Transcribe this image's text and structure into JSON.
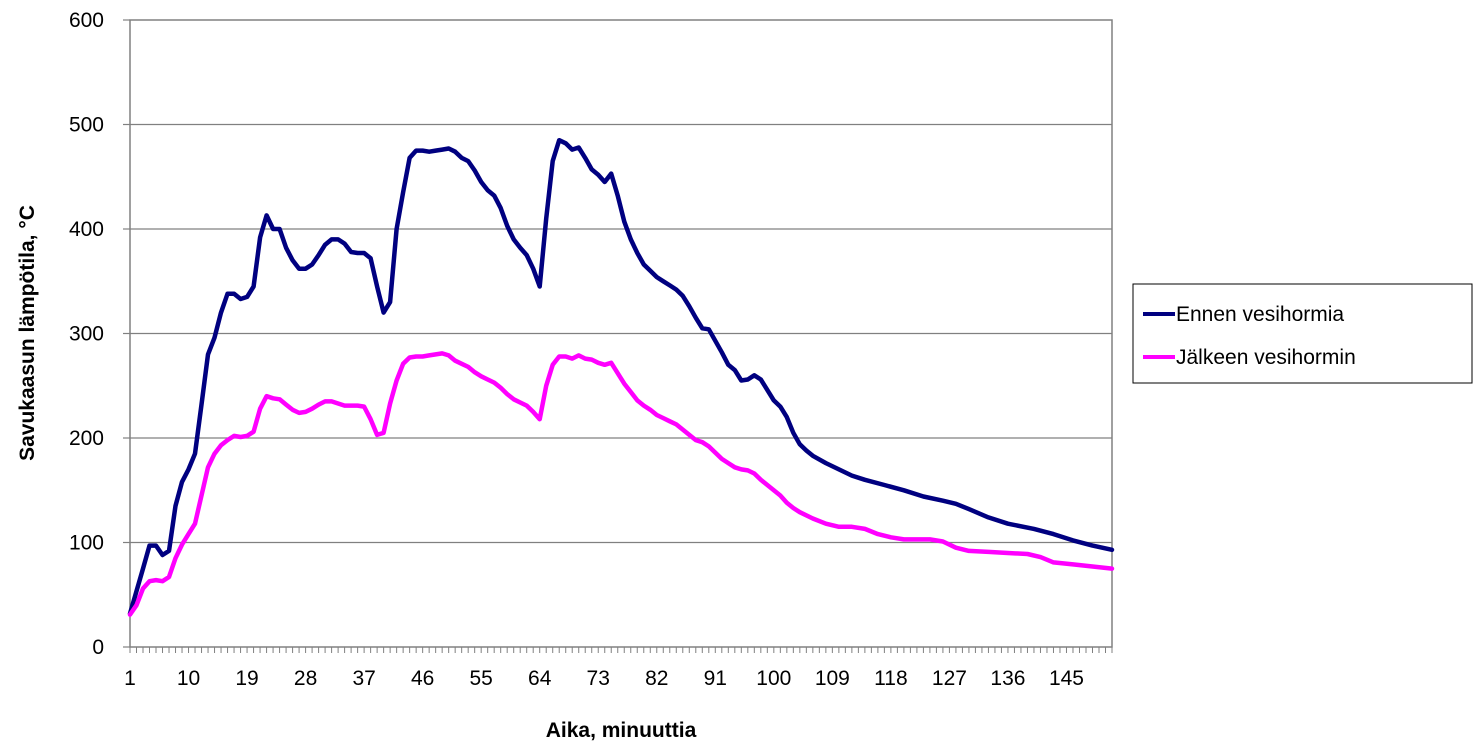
{
  "chart_data": {
    "type": "line",
    "title": "",
    "xlabel": "Aika, minuuttia",
    "ylabel": "Savukaasun lämpötila, °C",
    "xlim": [
      1,
      152
    ],
    "ylim": [
      0,
      600
    ],
    "grid": "horizontal",
    "legend_position": "right",
    "x_tick_labels": [
      "1",
      "10",
      "19",
      "28",
      "37",
      "46",
      "55",
      "64",
      "73",
      "82",
      "91",
      "100",
      "109",
      "118",
      "127",
      "136",
      "145"
    ],
    "y_tick_labels": [
      "0",
      "100",
      "200",
      "300",
      "400",
      "500",
      "600"
    ],
    "series": [
      {
        "name": "Ennen vesihormia",
        "color": "#000080",
        "points": [
          [
            1,
            32
          ],
          [
            3,
            75
          ],
          [
            4,
            97
          ],
          [
            5,
            97
          ],
          [
            6,
            88
          ],
          [
            7,
            92
          ],
          [
            8,
            135
          ],
          [
            9,
            158
          ],
          [
            10,
            170
          ],
          [
            11,
            185
          ],
          [
            12,
            232
          ],
          [
            13,
            280
          ],
          [
            14,
            296
          ],
          [
            15,
            320
          ],
          [
            16,
            338
          ],
          [
            17,
            338
          ],
          [
            18,
            333
          ],
          [
            19,
            335
          ],
          [
            20,
            345
          ],
          [
            21,
            392
          ],
          [
            22,
            413
          ],
          [
            23,
            400
          ],
          [
            24,
            400
          ],
          [
            25,
            382
          ],
          [
            26,
            370
          ],
          [
            27,
            362
          ],
          [
            28,
            362
          ],
          [
            29,
            366
          ],
          [
            30,
            375
          ],
          [
            31,
            385
          ],
          [
            32,
            390
          ],
          [
            33,
            390
          ],
          [
            34,
            386
          ],
          [
            35,
            378
          ],
          [
            36,
            377
          ],
          [
            37,
            377
          ],
          [
            38,
            372
          ],
          [
            39,
            345
          ],
          [
            40,
            320
          ],
          [
            41,
            330
          ],
          [
            42,
            400
          ],
          [
            43,
            435
          ],
          [
            44,
            468
          ],
          [
            45,
            475
          ],
          [
            46,
            475
          ],
          [
            47,
            474
          ],
          [
            48,
            475
          ],
          [
            49,
            476
          ],
          [
            50,
            477
          ],
          [
            51,
            474
          ],
          [
            52,
            468
          ],
          [
            53,
            465
          ],
          [
            54,
            456
          ],
          [
            55,
            445
          ],
          [
            56,
            437
          ],
          [
            57,
            432
          ],
          [
            58,
            420
          ],
          [
            59,
            403
          ],
          [
            60,
            390
          ],
          [
            61,
            382
          ],
          [
            62,
            375
          ],
          [
            63,
            362
          ],
          [
            64,
            345
          ],
          [
            65,
            410
          ],
          [
            66,
            465
          ],
          [
            67,
            485
          ],
          [
            68,
            482
          ],
          [
            69,
            476
          ],
          [
            70,
            478
          ],
          [
            71,
            468
          ],
          [
            72,
            457
          ],
          [
            73,
            452
          ],
          [
            74,
            445
          ],
          [
            75,
            453
          ],
          [
            76,
            432
          ],
          [
            77,
            407
          ],
          [
            78,
            390
          ],
          [
            79,
            377
          ],
          [
            80,
            366
          ],
          [
            81,
            360
          ],
          [
            82,
            354
          ],
          [
            83,
            350
          ],
          [
            84,
            346
          ],
          [
            85,
            342
          ],
          [
            86,
            336
          ],
          [
            87,
            326
          ],
          [
            88,
            315
          ],
          [
            89,
            305
          ],
          [
            90,
            304
          ],
          [
            91,
            293
          ],
          [
            92,
            282
          ],
          [
            93,
            270
          ],
          [
            94,
            265
          ],
          [
            95,
            255
          ],
          [
            96,
            256
          ],
          [
            97,
            260
          ],
          [
            98,
            256
          ],
          [
            99,
            246
          ],
          [
            100,
            236
          ],
          [
            101,
            230
          ],
          [
            102,
            220
          ],
          [
            103,
            205
          ],
          [
            104,
            194
          ],
          [
            105,
            188
          ],
          [
            106,
            183
          ],
          [
            108,
            176
          ],
          [
            110,
            170
          ],
          [
            112,
            164
          ],
          [
            114,
            160
          ],
          [
            117,
            155
          ],
          [
            120,
            150
          ],
          [
            123,
            144
          ],
          [
            126,
            140
          ],
          [
            128,
            137
          ],
          [
            130,
            132
          ],
          [
            133,
            124
          ],
          [
            136,
            118
          ],
          [
            140,
            113
          ],
          [
            143,
            108
          ],
          [
            146,
            102
          ],
          [
            149,
            97
          ],
          [
            152,
            93
          ]
        ]
      },
      {
        "name": "Jälkeen vesihormin",
        "color": "#FF00FF",
        "points": [
          [
            1,
            31
          ],
          [
            2,
            40
          ],
          [
            3,
            56
          ],
          [
            4,
            63
          ],
          [
            5,
            64
          ],
          [
            6,
            63
          ],
          [
            7,
            67
          ],
          [
            8,
            85
          ],
          [
            9,
            98
          ],
          [
            10,
            108
          ],
          [
            11,
            118
          ],
          [
            12,
            145
          ],
          [
            13,
            172
          ],
          [
            14,
            185
          ],
          [
            15,
            193
          ],
          [
            16,
            198
          ],
          [
            17,
            202
          ],
          [
            18,
            201
          ],
          [
            19,
            202
          ],
          [
            20,
            206
          ],
          [
            21,
            228
          ],
          [
            22,
            240
          ],
          [
            23,
            238
          ],
          [
            24,
            237
          ],
          [
            25,
            232
          ],
          [
            26,
            227
          ],
          [
            27,
            224
          ],
          [
            28,
            225
          ],
          [
            29,
            228
          ],
          [
            30,
            232
          ],
          [
            31,
            235
          ],
          [
            32,
            235
          ],
          [
            33,
            233
          ],
          [
            34,
            231
          ],
          [
            35,
            231
          ],
          [
            36,
            231
          ],
          [
            37,
            230
          ],
          [
            38,
            218
          ],
          [
            39,
            203
          ],
          [
            40,
            205
          ],
          [
            41,
            233
          ],
          [
            42,
            255
          ],
          [
            43,
            271
          ],
          [
            44,
            277
          ],
          [
            45,
            278
          ],
          [
            46,
            278
          ],
          [
            47,
            279
          ],
          [
            48,
            280
          ],
          [
            49,
            281
          ],
          [
            50,
            279
          ],
          [
            51,
            274
          ],
          [
            52,
            271
          ],
          [
            53,
            268
          ],
          [
            54,
            263
          ],
          [
            55,
            259
          ],
          [
            56,
            256
          ],
          [
            57,
            253
          ],
          [
            58,
            248
          ],
          [
            59,
            242
          ],
          [
            60,
            237
          ],
          [
            61,
            234
          ],
          [
            62,
            231
          ],
          [
            63,
            225
          ],
          [
            64,
            218
          ],
          [
            65,
            250
          ],
          [
            66,
            270
          ],
          [
            67,
            278
          ],
          [
            68,
            278
          ],
          [
            69,
            276
          ],
          [
            70,
            279
          ],
          [
            71,
            276
          ],
          [
            72,
            275
          ],
          [
            73,
            272
          ],
          [
            74,
            270
          ],
          [
            75,
            272
          ],
          [
            76,
            262
          ],
          [
            77,
            252
          ],
          [
            78,
            244
          ],
          [
            79,
            236
          ],
          [
            80,
            231
          ],
          [
            81,
            227
          ],
          [
            82,
            222
          ],
          [
            83,
            219
          ],
          [
            84,
            216
          ],
          [
            85,
            213
          ],
          [
            86,
            208
          ],
          [
            87,
            203
          ],
          [
            88,
            198
          ],
          [
            89,
            196
          ],
          [
            90,
            192
          ],
          [
            91,
            186
          ],
          [
            92,
            180
          ],
          [
            93,
            176
          ],
          [
            94,
            172
          ],
          [
            95,
            170
          ],
          [
            96,
            169
          ],
          [
            97,
            166
          ],
          [
            98,
            160
          ],
          [
            99,
            155
          ],
          [
            100,
            150
          ],
          [
            101,
            145
          ],
          [
            102,
            138
          ],
          [
            103,
            133
          ],
          [
            104,
            129
          ],
          [
            106,
            123
          ],
          [
            108,
            118
          ],
          [
            110,
            115
          ],
          [
            112,
            115
          ],
          [
            114,
            113
          ],
          [
            116,
            108
          ],
          [
            118,
            105
          ],
          [
            120,
            103
          ],
          [
            122,
            103
          ],
          [
            124,
            103
          ],
          [
            126,
            101
          ],
          [
            128,
            95
          ],
          [
            130,
            92
          ],
          [
            133,
            91
          ],
          [
            136,
            90
          ],
          [
            139,
            89
          ],
          [
            141,
            86
          ],
          [
            143,
            81
          ],
          [
            146,
            79
          ],
          [
            149,
            77
          ],
          [
            152,
            75
          ]
        ]
      }
    ]
  }
}
